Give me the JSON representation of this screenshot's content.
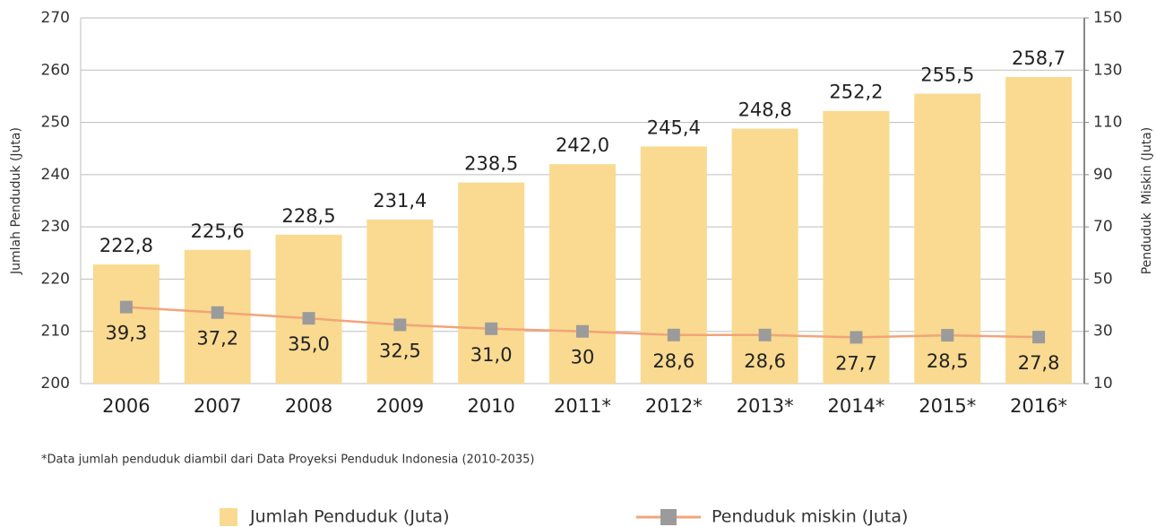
{
  "chart_data": {
    "type": "bar",
    "categories": [
      "2006",
      "2007",
      "2008",
      "2009",
      "2010",
      "2011*",
      "2012*",
      "2013*",
      "2014*",
      "2015*",
      "2016*"
    ],
    "series": [
      {
        "name": "Jumlah Penduduk (Juta)",
        "color": "#f9da90",
        "values": [
          222.8,
          225.6,
          228.5,
          231.4,
          238.5,
          242.0,
          245.4,
          248.8,
          252.2,
          255.5,
          258.7
        ],
        "value_labels": [
          "222,8",
          "225,6",
          "228,5",
          "231,4",
          "238,5",
          "242,0",
          "245,4",
          "248,8",
          "252,2",
          "255,5",
          "258,7"
        ]
      },
      {
        "name": "Penduduk miskin (Juta)",
        "type": "line",
        "axis": "y2",
        "color": "#f2a47a",
        "marker_color": "#9b9b9b",
        "values": [
          39.3,
          37.2,
          35.0,
          32.5,
          31.0,
          30,
          28.6,
          28.6,
          27.7,
          28.5,
          27.8
        ],
        "value_labels": [
          "39,3",
          "37,2",
          "35,0",
          "32,5",
          "31,0",
          "30",
          "28,6",
          "28,6",
          "27,7",
          "28,5",
          "27,8"
        ]
      }
    ],
    "ylabel": "Jumlah Penduduk (Juta)",
    "y2label": "Penduduk  Miskin (Juta)",
    "ylim": [
      200,
      270
    ],
    "yticks": [
      200,
      210,
      220,
      230,
      240,
      250,
      260,
      270
    ],
    "y2lim": [
      10,
      150
    ],
    "y2ticks": [
      10,
      30,
      50,
      70,
      90,
      110,
      130,
      150
    ],
    "grid": true,
    "legend": "bottom",
    "note": "*Data jumlah penduduk diambil dari Data Proyeksi Penduduk Indonesia (2010-2035)"
  }
}
